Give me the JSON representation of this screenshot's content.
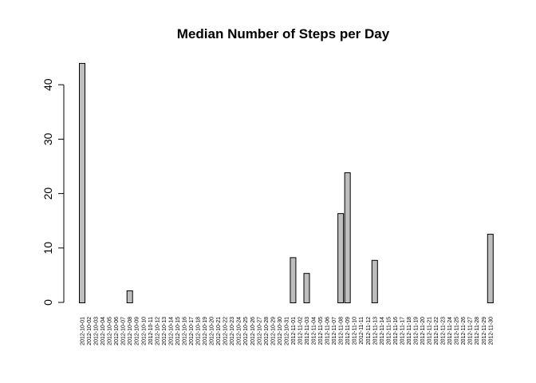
{
  "chart_data": {
    "type": "bar",
    "title": "Median Number of Steps per Day",
    "xlabel": "",
    "ylabel": "",
    "ylim": [
      0,
      44
    ],
    "yticks": [
      0,
      10,
      20,
      30,
      40
    ],
    "grid": false,
    "legend": "none",
    "bar_fill": "#bebebe",
    "bar_stroke": "#000000",
    "categories": [
      "2012-10-01",
      "2012-10-02",
      "2012-10-03",
      "2012-10-04",
      "2012-10-05",
      "2012-10-06",
      "2012-10-07",
      "2012-10-08",
      "2012-10-09",
      "2012-10-10",
      "2012-10-11",
      "2012-10-12",
      "2012-10-13",
      "2012-10-14",
      "2012-10-15",
      "2012-10-16",
      "2012-10-17",
      "2012-10-18",
      "2012-10-19",
      "2012-10-20",
      "2012-10-21",
      "2012-10-22",
      "2012-10-23",
      "2012-10-24",
      "2012-10-25",
      "2012-10-26",
      "2012-10-27",
      "2012-10-28",
      "2012-10-29",
      "2012-10-30",
      "2012-10-31",
      "2012-11-01",
      "2012-11-02",
      "2012-11-03",
      "2012-11-04",
      "2012-11-05",
      "2012-11-06",
      "2012-11-07",
      "2012-11-08",
      "2012-11-09",
      "2012-11-10",
      "2012-11-11",
      "2012-11-12",
      "2012-11-13",
      "2012-11-14",
      "2012-11-15",
      "2012-11-16",
      "2012-11-17",
      "2012-11-18",
      "2012-11-19",
      "2012-11-20",
      "2012-11-21",
      "2012-11-22",
      "2012-11-23",
      "2012-11-24",
      "2012-11-25",
      "2012-11-26",
      "2012-11-27",
      "2012-11-28",
      "2012-11-29",
      "2012-11-30"
    ],
    "values": [
      44.0,
      0,
      0,
      0,
      0,
      0,
      0,
      2.2,
      0,
      0,
      0,
      0,
      0,
      0,
      0,
      0,
      0,
      0,
      0,
      0,
      0,
      0,
      0,
      0,
      0,
      0,
      0,
      0,
      0,
      0,
      0,
      8.3,
      0,
      5.4,
      0,
      0,
      0,
      0,
      16.4,
      23.9,
      0,
      0,
      0,
      7.8,
      0,
      0,
      0,
      0,
      0,
      0,
      0,
      0,
      0,
      0,
      0,
      0,
      0,
      0,
      0,
      0,
      12.6
    ]
  }
}
